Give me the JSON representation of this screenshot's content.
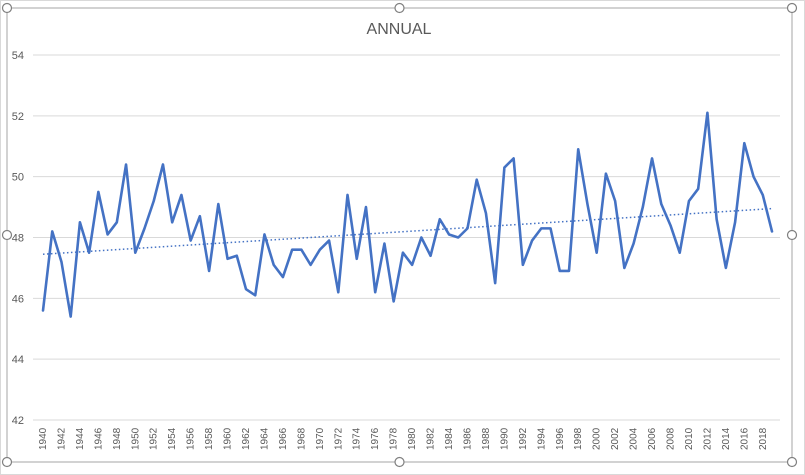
{
  "chart_data": {
    "type": "line",
    "title": "ANNUAL",
    "xlabel": "",
    "ylabel": "",
    "ylim": [
      42,
      54
    ],
    "yticks": [
      42,
      44,
      46,
      48,
      50,
      52,
      54
    ],
    "x": [
      1940,
      1941,
      1942,
      1943,
      1944,
      1945,
      1946,
      1947,
      1948,
      1949,
      1950,
      1951,
      1952,
      1953,
      1954,
      1955,
      1956,
      1957,
      1958,
      1959,
      1960,
      1961,
      1962,
      1963,
      1964,
      1965,
      1966,
      1967,
      1968,
      1969,
      1970,
      1971,
      1972,
      1973,
      1974,
      1975,
      1976,
      1977,
      1978,
      1979,
      1980,
      1981,
      1982,
      1983,
      1984,
      1985,
      1986,
      1987,
      1988,
      1989,
      1990,
      1991,
      1992,
      1993,
      1994,
      1995,
      1996,
      1997,
      1998,
      1999,
      2000,
      2001,
      2002,
      2003,
      2004,
      2005,
      2006,
      2007,
      2008,
      2009,
      2010,
      2011,
      2012,
      2013,
      2014,
      2015,
      2016,
      2017,
      2018,
      2019
    ],
    "xtick_labels": [
      "1940",
      "1942",
      "1944",
      "1946",
      "1948",
      "1950",
      "1952",
      "1954",
      "1956",
      "1958",
      "1960",
      "1962",
      "1964",
      "1966",
      "1968",
      "1970",
      "1972",
      "1974",
      "1976",
      "1978",
      "1980",
      "1982",
      "1984",
      "1986",
      "1988",
      "1990",
      "1992",
      "1994",
      "1996",
      "1998",
      "2000",
      "2002",
      "2004",
      "2006",
      "2008",
      "2010",
      "2012",
      "2014",
      "2016",
      "2018"
    ],
    "series": [
      {
        "values": [
          45.6,
          48.2,
          47.2,
          45.4,
          48.5,
          47.5,
          49.5,
          48.1,
          48.5,
          50.4,
          47.5,
          48.3,
          49.2,
          50.4,
          48.5,
          49.4,
          47.9,
          48.7,
          46.9,
          49.1,
          47.3,
          47.4,
          46.3,
          46.1,
          48.1,
          47.1,
          46.7,
          47.6,
          47.6,
          47.1,
          47.6,
          47.9,
          46.2,
          49.4,
          47.3,
          49.0,
          46.2,
          47.8,
          45.9,
          47.5,
          47.1,
          48.0,
          47.4,
          48.6,
          48.1,
          48.0,
          48.3,
          49.9,
          48.8,
          46.5,
          50.3,
          50.6,
          47.1,
          47.9,
          48.3,
          48.3,
          46.9,
          46.9,
          50.9,
          49.1,
          47.5,
          50.1,
          49.2,
          47.0,
          47.8,
          49.0,
          50.6,
          49.1,
          48.4,
          47.5,
          49.2,
          49.6,
          52.1,
          48.6,
          47.0,
          48.5,
          51.1,
          50.0,
          49.4,
          48.2
        ],
        "color": "#4472C4"
      }
    ],
    "trendline": {
      "style": "dotted",
      "color": "#4472C4",
      "start": 47.45,
      "end": 48.95
    },
    "grid": true,
    "legend": "none"
  }
}
